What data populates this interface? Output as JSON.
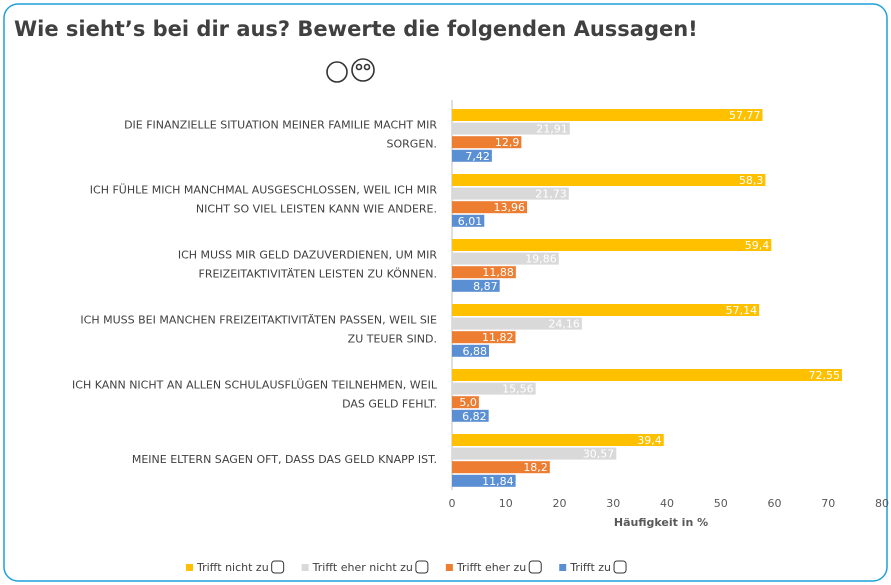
{
  "chart_data": {
    "type": "hbar",
    "title": "Wie sieht’s bei dir aus? Bewerte die folgenden Aussagen!",
    "categories": [
      [
        "DIE FINANZIELLE SITUATION MEINER FAMILIE MACHT MIR",
        "SORGEN."
      ],
      [
        "ICH FÜHLE MICH MANCHMAL AUSGESCHLOSSEN, WEIL ICH MIR",
        "NICHT SO VIEL LEISTEN KANN WIE ANDERE."
      ],
      [
        "ICH MUSS MIR GELD DAZUVERDIENEN, UM MIR",
        "FREIZEITAKTIVITÄTEN LEISTEN ZU KÖNNEN."
      ],
      [
        "ICH MUSS BEI MANCHEN FREIZEITAKTIVITÄTEN PASSEN, WEIL SIE",
        "ZU TEUER SIND."
      ],
      [
        "ICH KANN NICHT AN ALLEN SCHULAUSFLÜGEN TEILNEHMEN, WEIL",
        "DAS GELD FEHLT."
      ],
      [
        "MEINE ELTERN SAGEN OFT, DASS DAS GELD KNAPP IST."
      ]
    ],
    "series": [
      {
        "name": "Trifft nicht zu",
        "color": "#ffc000",
        "values": [
          57.77,
          58.3,
          59.4,
          57.14,
          72.55,
          39.4
        ],
        "value_labels": [
          "57,77",
          "58,3",
          "59,4",
          "57,14",
          "72,55",
          "39,4"
        ]
      },
      {
        "name": "Trifft eher nicht zu",
        "color": "#d9d9d9",
        "values": [
          21.91,
          21.73,
          19.86,
          24.16,
          15.56,
          30.57
        ],
        "value_labels": [
          "21,91",
          "21,73",
          "19,86",
          "24,16",
          "15,56",
          "30,57"
        ]
      },
      {
        "name": "Trifft eher zu",
        "color": "#ed7d31",
        "values": [
          12.9,
          13.96,
          11.88,
          11.82,
          5.0,
          18.2
        ],
        "value_labels": [
          "12,9",
          "13,96",
          "11,88",
          "11,82",
          "5,0",
          "18,2"
        ]
      },
      {
        "name": "Trifft zu",
        "color": "#5b8fd3",
        "values": [
          7.42,
          6.01,
          8.87,
          6.88,
          6.82,
          11.84
        ],
        "value_labels": [
          "7,42",
          "6,01",
          "8,87",
          "6,88",
          "6,82",
          "11,84"
        ]
      }
    ],
    "xlabel": "Häufigkeit in %",
    "xlim": [
      0,
      80
    ],
    "xticks": [
      0,
      10,
      20,
      30,
      40,
      50,
      60,
      70,
      80
    ],
    "grid": false
  }
}
